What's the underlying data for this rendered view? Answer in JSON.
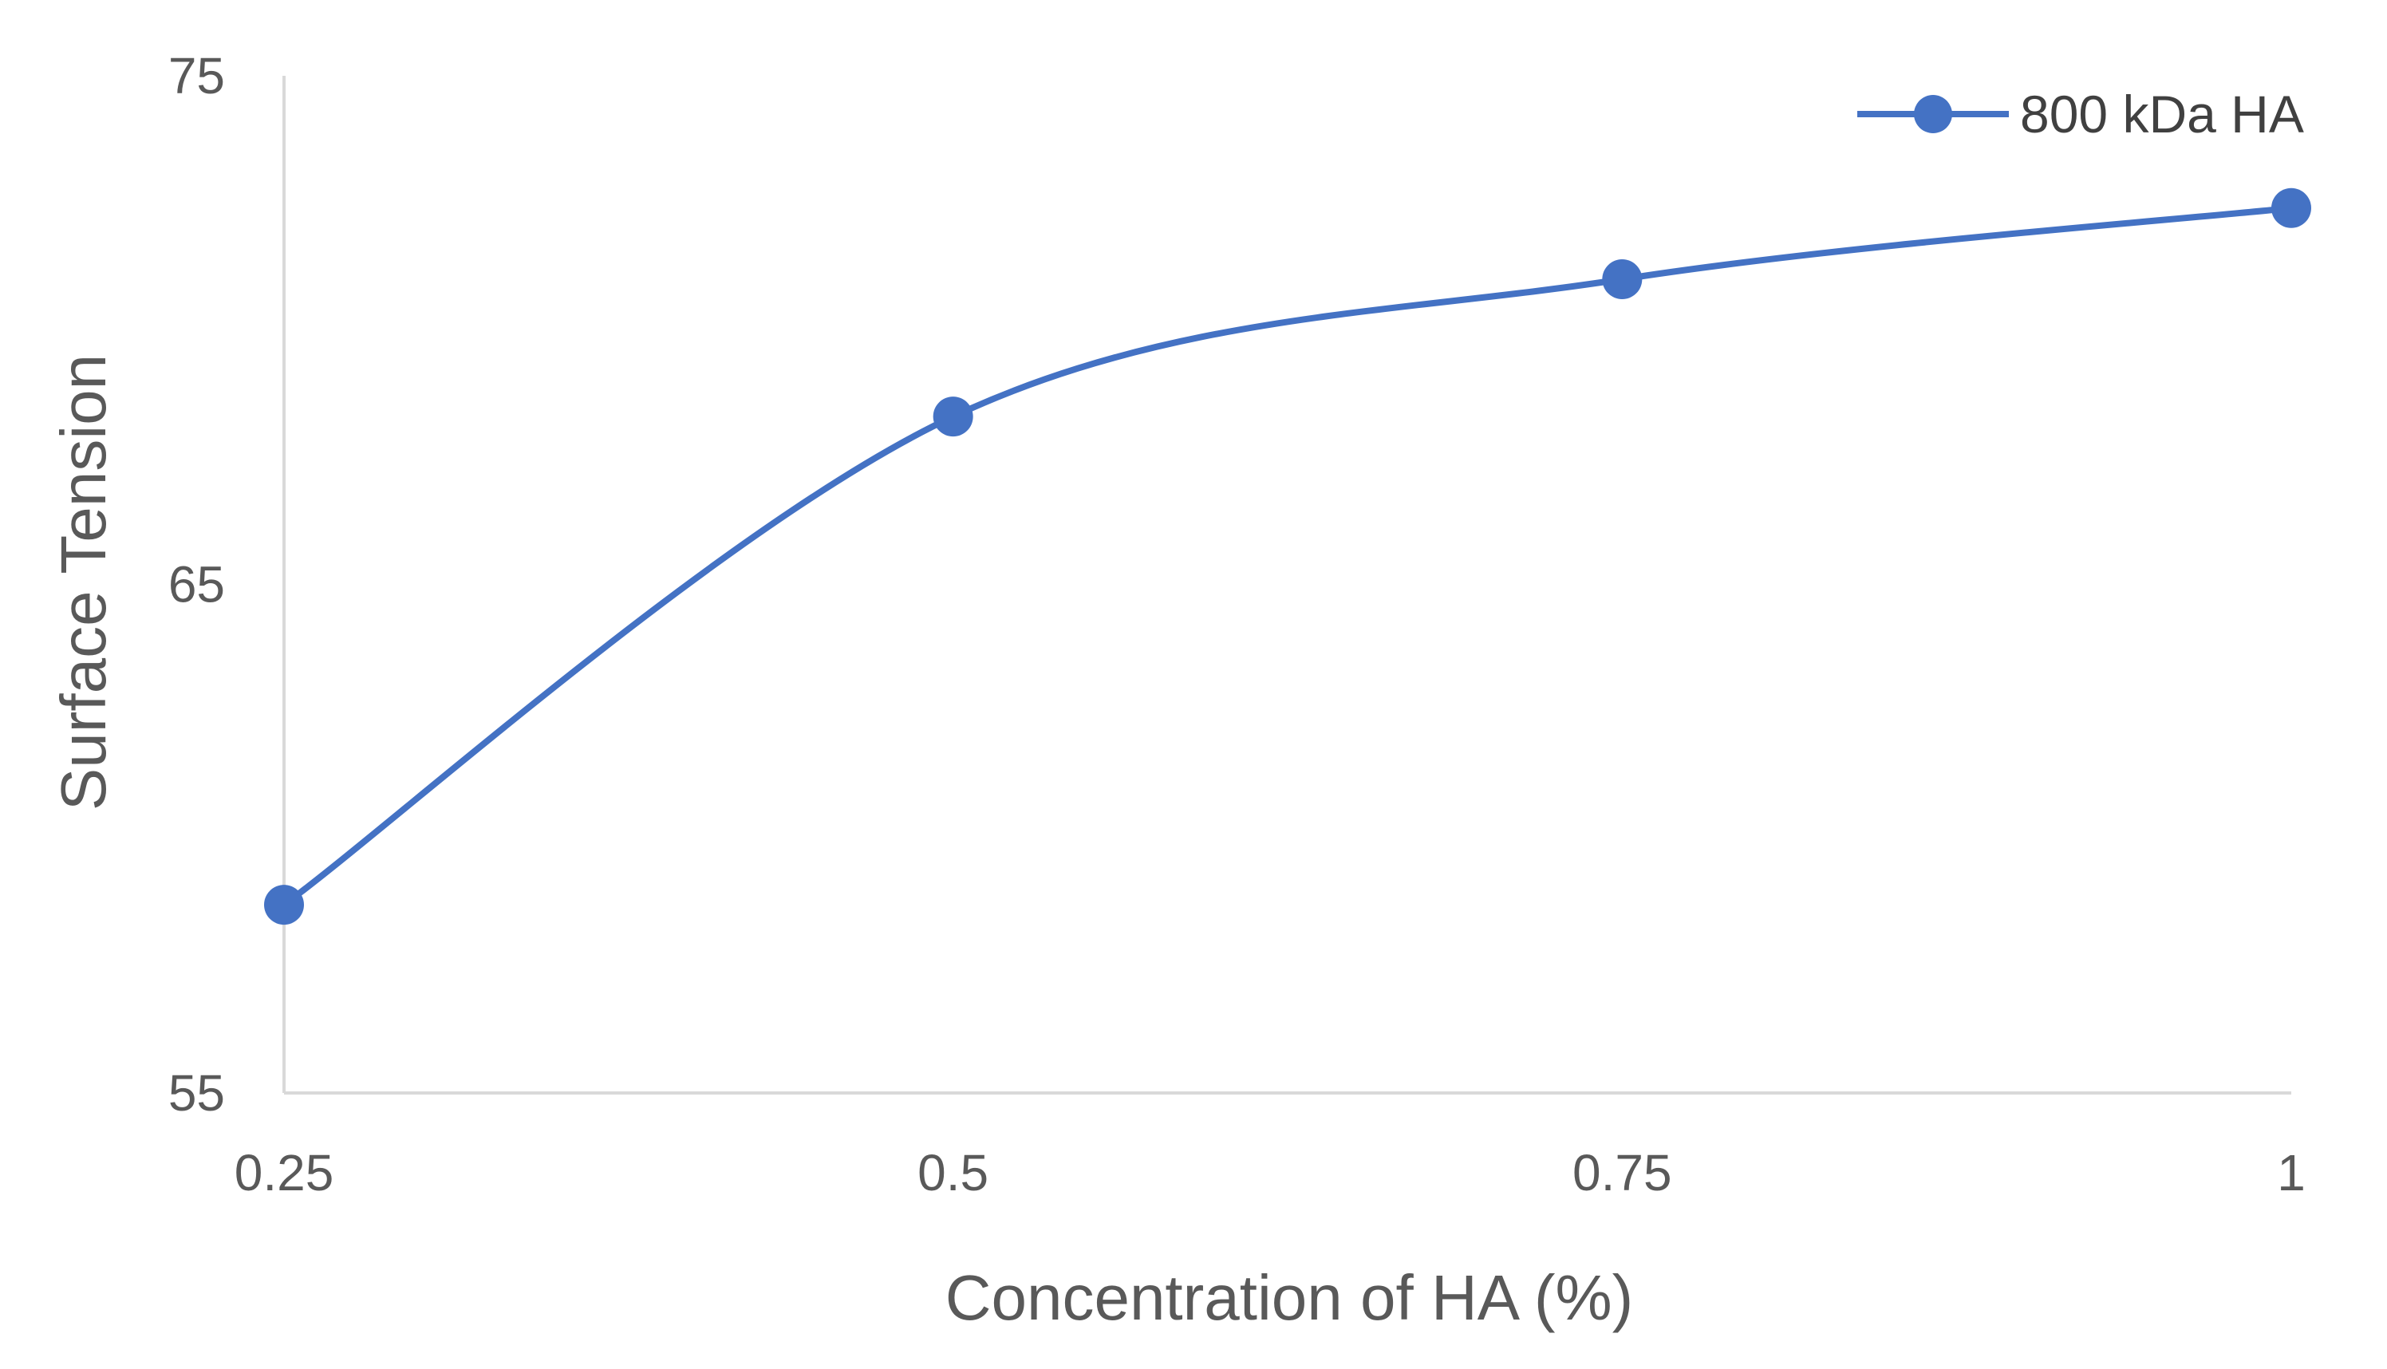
{
  "chart_data": {
    "type": "line",
    "title": "",
    "xlabel": "Concentration of HA (%)",
    "ylabel": "Surface Tension",
    "x": [
      0.25,
      0.5,
      0.75,
      1
    ],
    "x_tick_labels": [
      "0.25",
      "0.5",
      "0.75",
      "1"
    ],
    "y_tick_labels": [
      "55",
      "65",
      "75"
    ],
    "ylim": [
      55,
      75
    ],
    "grid": false,
    "smooth": true,
    "legend_position": "top-right",
    "series": [
      {
        "name": "800 kDa HA",
        "values": [
          58.7,
          68.3,
          71.0,
          72.4
        ],
        "color": "#4472C4"
      }
    ]
  }
}
